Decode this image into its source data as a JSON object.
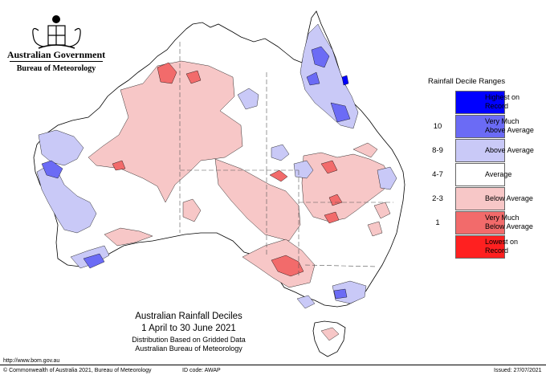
{
  "header": {
    "government": "Australian Government",
    "bureau": "Bureau of Meteorology"
  },
  "legend": {
    "title": "Rainfall Decile Ranges",
    "entries": [
      {
        "range": "",
        "label": "Highest on Record",
        "color": "#0000ff"
      },
      {
        "range": "10",
        "label": "Very Much Above Average",
        "color": "#6b6bf5"
      },
      {
        "range": "8-9",
        "label": "Above Average",
        "color": "#c9c9f7"
      },
      {
        "range": "4-7",
        "label": "Average",
        "color": "#ffffff"
      },
      {
        "range": "2-3",
        "label": "Below Average",
        "color": "#f7c7c7"
      },
      {
        "range": "1",
        "label": "Very Much Below Average",
        "color": "#f26b6b"
      },
      {
        "range": "",
        "label": "Lowest on Record",
        "color": "#ff2020"
      }
    ]
  },
  "map_title": {
    "line1": "Australian Rainfall Deciles",
    "line2": "1 April to 30 June 2021",
    "line3": "Distribution Based on Gridded Data",
    "line4": "Australian Bureau of Meteorology"
  },
  "footer": {
    "url": "http://www.bom.gov.au",
    "copyright": "© Commonwealth of Australia 2021, Bureau of Meteorology",
    "id_code": "ID code: AWAP",
    "issued": "Issued: 27/07/2021"
  },
  "colors": {
    "above_average": "#c9c9f7",
    "very_much_above": "#6b6bf5",
    "highest": "#0000ff",
    "below_average": "#f7c7c7",
    "very_much_below": "#f26b6b",
    "lowest": "#ff2020"
  }
}
